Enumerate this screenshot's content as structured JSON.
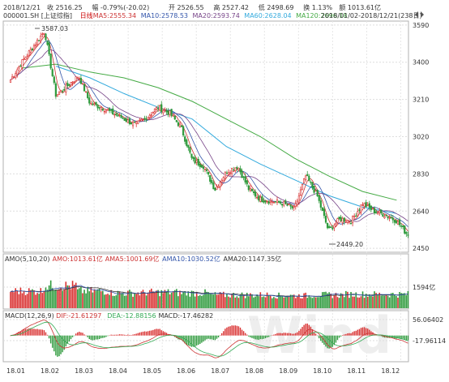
{
  "header": {
    "row1": [
      {
        "text": "2018/12/21",
        "color": "#333333"
      },
      {
        "text": "收 2516.25",
        "color": "#333333"
      },
      {
        "text": "幅 -0.79%(-20.02)",
        "color": "#333333"
      },
      {
        "text": "开 2526.55",
        "color": "#333333"
      },
      {
        "text": "高 2527.42",
        "color": "#333333"
      },
      {
        "text": "低 2498.69",
        "color": "#333333"
      },
      {
        "text": "换 1.13%",
        "color": "#333333"
      },
      {
        "text": "额 1013.61亿",
        "color": "#333333"
      }
    ],
    "row2": [
      {
        "text": "000001.SH [上证综指]",
        "color": "#333333"
      },
      {
        "text": "日线",
        "color": "#cc0000"
      },
      {
        "text": "MA5:2555.34",
        "color": "#cc3333"
      },
      {
        "text": "MA10:2578.53",
        "color": "#3355aa"
      },
      {
        "text": "MA20:2593.74",
        "color": "#774488"
      },
      {
        "text": "MA60:2628.04",
        "color": "#33aadd"
      },
      {
        "text": "MA120:2696.18",
        "color": "#44aa44"
      }
    ],
    "date_range": "2018/01/02-2018/12/21(238日)"
  },
  "price_panel": {
    "y_ticks": [
      "3590",
      "3400",
      "3210",
      "3020",
      "2830",
      "2640",
      "2450"
    ],
    "high_label": "3587.03",
    "low_label": "2449.20"
  },
  "volume_panel": {
    "legend": [
      {
        "text": "AMO(5,10,20)",
        "color": "#333333"
      },
      {
        "text": "AMO:1013.61亿",
        "color": "#cc3333"
      },
      {
        "text": "AMA5:1001.69亿",
        "color": "#cc3333"
      },
      {
        "text": "AMA10:1030.52亿",
        "color": "#3355aa"
      },
      {
        "text": "AMA20:1147.35亿",
        "color": "#333333"
      }
    ],
    "y_tick": "1594亿"
  },
  "macd_panel": {
    "legend": [
      {
        "text": "MACD(12,26,9)",
        "color": "#333333"
      },
      {
        "text": "DIF:-21.61297",
        "color": "#cc3333"
      },
      {
        "text": "DEA:-12.88156",
        "color": "#33aa55"
      },
      {
        "text": "MACD:-17.46282",
        "color": "#333333"
      }
    ],
    "y_ticks": [
      "56.06402",
      "-17.96114"
    ]
  },
  "x_axis": {
    "ticks": [
      "18.01",
      "18.02",
      "18.03",
      "18.04",
      "18.05",
      "18.06",
      "18.07",
      "18.08",
      "18.09",
      "18.10",
      "18.11",
      "18.12"
    ]
  },
  "watermark": "Wind",
  "colors": {
    "up": "#d93030",
    "down": "#2e9a3c",
    "ma5": "#cc3333",
    "ma10": "#3355aa",
    "ma20": "#774488",
    "ma60": "#33aadd",
    "ma120": "#44aa44"
  },
  "chart_data": {
    "type": "candlestick",
    "ylim": [
      2430,
      3610
    ],
    "x": [
      "18.01",
      "18.02",
      "18.03",
      "18.04",
      "18.05",
      "18.06",
      "18.07",
      "18.08",
      "18.09",
      "18.10",
      "18.11",
      "18.12"
    ],
    "close_path": [
      {
        "x": "18.01",
        "y": 3310
      },
      {
        "x": "18.01",
        "y": 3400
      },
      {
        "x": "18.01",
        "y": 3480
      },
      {
        "x": "18.02",
        "y": 3560
      },
      {
        "x": "18.02",
        "y": 3230
      },
      {
        "x": "18.02",
        "y": 3280
      },
      {
        "x": "18.03",
        "y": 3330
      },
      {
        "x": "18.03",
        "y": 3190
      },
      {
        "x": "18.03",
        "y": 3170
      },
      {
        "x": "18.04",
        "y": 3140
      },
      {
        "x": "18.04",
        "y": 3110
      },
      {
        "x": "18.04",
        "y": 3080
      },
      {
        "x": "18.05",
        "y": 3120
      },
      {
        "x": "18.05",
        "y": 3170
      },
      {
        "x": "18.05",
        "y": 3140
      },
      {
        "x": "18.06",
        "y": 3070
      },
      {
        "x": "18.06",
        "y": 2900
      },
      {
        "x": "18.06",
        "y": 2870
      },
      {
        "x": "18.07",
        "y": 2750
      },
      {
        "x": "18.07",
        "y": 2840
      },
      {
        "x": "18.07",
        "y": 2870
      },
      {
        "x": "18.08",
        "y": 2750
      },
      {
        "x": "18.08",
        "y": 2700
      },
      {
        "x": "18.08",
        "y": 2690
      },
      {
        "x": "18.09",
        "y": 2680
      },
      {
        "x": "18.09",
        "y": 2650
      },
      {
        "x": "18.09",
        "y": 2820
      },
      {
        "x": "18.10",
        "y": 2720
      },
      {
        "x": "18.10",
        "y": 2540
      },
      {
        "x": "18.10",
        "y": 2600
      },
      {
        "x": "18.11",
        "y": 2590
      },
      {
        "x": "18.11",
        "y": 2680
      },
      {
        "x": "18.11",
        "y": 2640
      },
      {
        "x": "18.12",
        "y": 2620
      },
      {
        "x": "18.12",
        "y": 2590
      },
      {
        "x": "18.12",
        "y": 2516
      }
    ],
    "ma120": [
      {
        "x": "18.01",
        "y": 3370
      },
      {
        "x": "18.02",
        "y": 3390
      },
      {
        "x": "18.03",
        "y": 3350
      },
      {
        "x": "18.04",
        "y": 3320
      },
      {
        "x": "18.05",
        "y": 3270
      },
      {
        "x": "18.06",
        "y": 3200
      },
      {
        "x": "18.07",
        "y": 3110
      },
      {
        "x": "18.08",
        "y": 3020
      },
      {
        "x": "18.09",
        "y": 2910
      },
      {
        "x": "18.10",
        "y": 2820
      },
      {
        "x": "18.11",
        "y": 2740
      },
      {
        "x": "18.12",
        "y": 2696
      }
    ],
    "ma60": [
      {
        "x": "18.02",
        "y": 3380
      },
      {
        "x": "18.03",
        "y": 3320
      },
      {
        "x": "18.04",
        "y": 3240
      },
      {
        "x": "18.05",
        "y": 3170
      },
      {
        "x": "18.06",
        "y": 3110
      },
      {
        "x": "18.07",
        "y": 2970
      },
      {
        "x": "18.08",
        "y": 2880
      },
      {
        "x": "18.09",
        "y": 2800
      },
      {
        "x": "18.10",
        "y": 2720
      },
      {
        "x": "18.11",
        "y": 2660
      },
      {
        "x": "18.12",
        "y": 2628
      }
    ],
    "extremes": {
      "high": 3587.03,
      "low": 2449.2
    },
    "volume_ma": [
      1300,
      1700,
      1300,
      1150,
      1200,
      1150,
      1000,
      1000,
      950,
      1000,
      1050,
      1050
    ]
  }
}
